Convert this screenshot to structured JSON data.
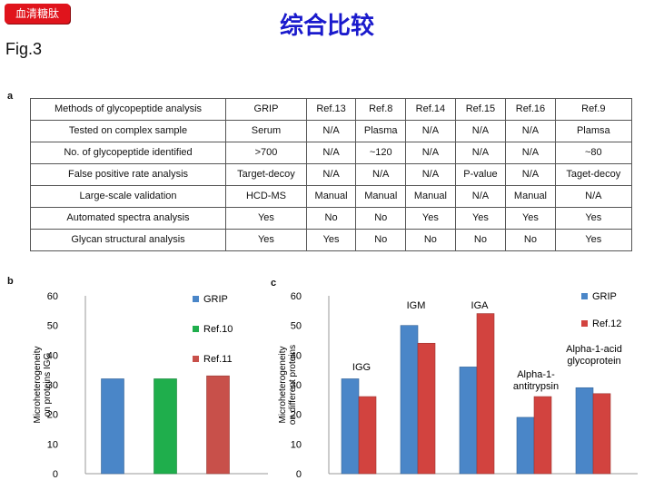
{
  "header": {
    "tag": "血清糖肽",
    "title": "综合比较",
    "fig_label": "Fig.3"
  },
  "panels": {
    "a": "a",
    "b": "b",
    "c": "c"
  },
  "colors": {
    "grip": "#4a86c8",
    "ref10": "#1fae4c",
    "ref11": "#c8504a",
    "ref12": "#d2433f",
    "tag": "#e0141c",
    "title": "#1a1acc"
  },
  "table": {
    "header": [
      "Methods of glycopeptide analysis",
      "GRIP",
      "Ref.13",
      "Ref.8",
      "Ref.14",
      "Ref.15",
      "Ref.16",
      "Ref.9"
    ],
    "rows": [
      [
        "Tested on complex sample",
        "Serum",
        "N/A",
        "Plasma",
        "N/A",
        "N/A",
        "N/A",
        "Plamsa"
      ],
      [
        "No. of glycopeptide identified",
        ">700",
        "N/A",
        "~120",
        "N/A",
        "N/A",
        "N/A",
        "~80"
      ],
      [
        "False positive rate analysis",
        "Target-decoy",
        "N/A",
        "N/A",
        "N/A",
        "P-value",
        "N/A",
        "Taget-decoy"
      ],
      [
        "Large-scale validation",
        "HCD-MS",
        "Manual",
        "Manual",
        "Manual",
        "N/A",
        "Manual",
        "N/A"
      ],
      [
        "Automated spectra analysis",
        "Yes",
        "No",
        "No",
        "Yes",
        "Yes",
        "Yes",
        "Yes"
      ],
      [
        "Glycan structural analysis",
        "Yes",
        "Yes",
        "No",
        "No",
        "No",
        "No",
        "Yes"
      ]
    ]
  },
  "chart_data": [
    {
      "type": "bar",
      "panel": "b",
      "ylabel": "Microheterogeneity on proteins IGG",
      "ylim": [
        0,
        60
      ],
      "yticks": [
        0,
        10,
        20,
        30,
        40,
        50,
        60
      ],
      "grid": false,
      "legend_position": "top-right",
      "series": [
        {
          "name": "GRIP",
          "values": [
            32
          ],
          "color": "#4a86c8"
        },
        {
          "name": "Ref.10",
          "values": [
            32
          ],
          "color": "#1fae4c"
        },
        {
          "name": "Ref.11",
          "values": [
            33
          ],
          "color": "#c8504a"
        }
      ]
    },
    {
      "type": "bar",
      "panel": "c",
      "ylabel": "Microheterogeneity on different proteins",
      "ylim": [
        0,
        60
      ],
      "yticks": [
        0,
        10,
        20,
        30,
        40,
        50,
        60
      ],
      "grid": false,
      "legend_position": "top-right",
      "categories": [
        "IGG",
        "IGM",
        "IGA",
        "Alpha-1-antitrypsin",
        "Alpha-1-acid glycoprotein"
      ],
      "category_annotations": [
        "IGG",
        "IGM",
        "IGA",
        "Alpha-1-\nantitrypsin",
        "Alpha-1-acid\nglycoprotein"
      ],
      "series": [
        {
          "name": "GRIP",
          "values": [
            32,
            50,
            36,
            19,
            29
          ],
          "color": "#4a86c8"
        },
        {
          "name": "Ref.12",
          "values": [
            26,
            44,
            54,
            26,
            27
          ],
          "color": "#d2433f"
        }
      ]
    }
  ]
}
